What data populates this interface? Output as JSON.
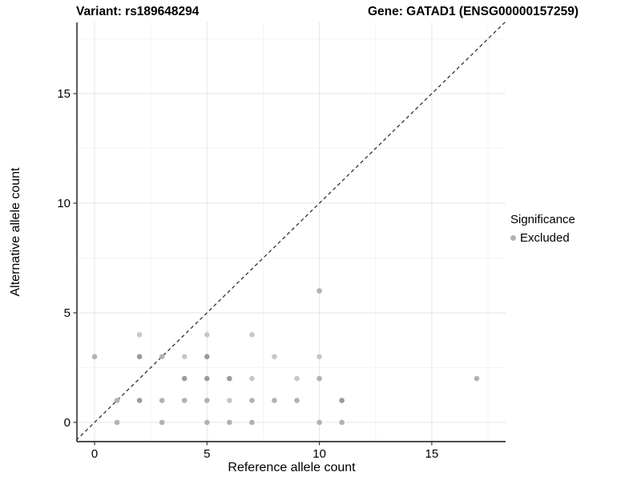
{
  "titles": {
    "left": "Variant: rs189648294",
    "right": "Gene: GATAD1 (ENSG00000157259)"
  },
  "colors": {
    "background": "#ffffff",
    "axis_line": "#333333",
    "tick_mark": "#333333",
    "grid_major": "#e5e5e5",
    "grid_minor": "#f2f2f2",
    "identity_line": "#2b2b2b",
    "dot_light": "#c7c7c7",
    "dot_medium": "#b2b2b2",
    "dot_dark": "#9b9b9b",
    "legend_dot": "#b2b2b2"
  },
  "chart_data": {
    "type": "scatter",
    "title_left": "Variant: rs189648294",
    "title_right": "Gene: GATAD1 (ENSG00000157259)",
    "xlabel": "Reference allele count",
    "ylabel": "Alternative allele count",
    "xlim": [
      -0.9,
      18.3
    ],
    "ylim": [
      -0.9,
      18.2
    ],
    "x_ticks": [
      0,
      5,
      10,
      15
    ],
    "y_ticks": [
      0,
      5,
      10,
      15
    ],
    "x_minor_gridlines": [
      2.5,
      7.5,
      12.5,
      17.5
    ],
    "y_minor_gridlines": [
      2.5,
      7.5,
      12.5,
      17.5
    ],
    "grid": "on (major + minor, light gray)",
    "reference_line": {
      "equation": "y = x",
      "style": "dashed",
      "color": "#2b2b2b"
    },
    "legend": {
      "title": "Significance",
      "position": "right",
      "entries": [
        {
          "label": "Excluded",
          "marker": "circle",
          "color": "#b2b2b2"
        }
      ]
    },
    "series": [
      {
        "name": "Excluded",
        "points": [
          {
            "x": 1,
            "y": 0,
            "shade": "m"
          },
          {
            "x": 3,
            "y": 0,
            "shade": "m"
          },
          {
            "x": 5,
            "y": 0,
            "shade": "m"
          },
          {
            "x": 6,
            "y": 0,
            "shade": "m"
          },
          {
            "x": 7,
            "y": 0,
            "shade": "m"
          },
          {
            "x": 10,
            "y": 0,
            "shade": "m"
          },
          {
            "x": 11,
            "y": 0,
            "shade": "m"
          },
          {
            "x": 1,
            "y": 1,
            "shade": "m"
          },
          {
            "x": 2,
            "y": 1,
            "shade": "d"
          },
          {
            "x": 3,
            "y": 1,
            "shade": "m"
          },
          {
            "x": 4,
            "y": 1,
            "shade": "m"
          },
          {
            "x": 5,
            "y": 1,
            "shade": "m"
          },
          {
            "x": 6,
            "y": 1,
            "shade": "l"
          },
          {
            "x": 7,
            "y": 1,
            "shade": "m"
          },
          {
            "x": 8,
            "y": 1,
            "shade": "m"
          },
          {
            "x": 9,
            "y": 1,
            "shade": "m"
          },
          {
            "x": 11,
            "y": 1,
            "shade": "d"
          },
          {
            "x": 4,
            "y": 2,
            "shade": "d"
          },
          {
            "x": 5,
            "y": 2,
            "shade": "d"
          },
          {
            "x": 6,
            "y": 2,
            "shade": "d"
          },
          {
            "x": 7,
            "y": 2,
            "shade": "l"
          },
          {
            "x": 9,
            "y": 2,
            "shade": "l"
          },
          {
            "x": 10,
            "y": 2,
            "shade": "m"
          },
          {
            "x": 17,
            "y": 2,
            "shade": "m"
          },
          {
            "x": 0,
            "y": 3,
            "shade": "m"
          },
          {
            "x": 2,
            "y": 3,
            "shade": "d"
          },
          {
            "x": 3,
            "y": 3,
            "shade": "m"
          },
          {
            "x": 4,
            "y": 3,
            "shade": "l"
          },
          {
            "x": 5,
            "y": 3,
            "shade": "d"
          },
          {
            "x": 8,
            "y": 3,
            "shade": "l"
          },
          {
            "x": 10,
            "y": 3,
            "shade": "l"
          },
          {
            "x": 2,
            "y": 4,
            "shade": "l"
          },
          {
            "x": 5,
            "y": 4,
            "shade": "l"
          },
          {
            "x": 7,
            "y": 4,
            "shade": "l"
          },
          {
            "x": 10,
            "y": 6,
            "shade": "m"
          }
        ]
      }
    ]
  }
}
